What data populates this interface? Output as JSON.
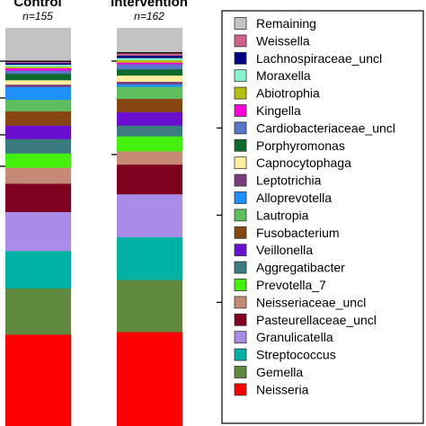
{
  "chart_data": {
    "type": "bar",
    "stacked": true,
    "normalized": true,
    "categories": [
      "Control",
      "Intervention"
    ],
    "category_subtitles": [
      "n=155",
      "n=162"
    ],
    "series": [
      {
        "name": "Neisseria",
        "color": "#fe0000",
        "values": [
          23.0,
          22.6
        ]
      },
      {
        "name": "Gemella",
        "color": "#5f8a3d",
        "values": [
          11.6,
          12.5
        ]
      },
      {
        "name": "Streptococcus",
        "color": "#00b2a3",
        "values": [
          9.4,
          10.3
        ]
      },
      {
        "name": "Granulicatella",
        "color": "#a98ce8",
        "values": [
          9.8,
          10.3
        ]
      },
      {
        "name": "Pasteurellaceae_uncl",
        "color": "#800020",
        "values": [
          7.1,
          7.1
        ]
      },
      {
        "name": "Neisseriaceae_uncl",
        "color": "#c58a75",
        "values": [
          4.0,
          3.2
        ]
      },
      {
        "name": "Prevotella_7",
        "color": "#44f00e",
        "values": [
          3.6,
          3.6
        ]
      },
      {
        "name": "Aggregatibacter",
        "color": "#3a7b80",
        "values": [
          3.6,
          2.6
        ]
      },
      {
        "name": "Veillonella",
        "color": "#6a0fd0",
        "values": [
          3.4,
          3.2
        ]
      },
      {
        "name": "Fusobacterium",
        "color": "#874512",
        "values": [
          3.6,
          3.2
        ]
      },
      {
        "name": "Lautropia",
        "color": "#5ebe5e",
        "values": [
          2.9,
          2.9
        ]
      },
      {
        "name": "Alloprevotella",
        "color": "#1e90ff",
        "values": [
          3.2,
          0.6
        ]
      },
      {
        "name": "Leptotrichia",
        "color": "#7a3a7e",
        "values": [
          0.6,
          0.6
        ]
      },
      {
        "name": "Capnocytophaga",
        "color": "#ffee9f",
        "values": [
          1.1,
          1.5
        ]
      },
      {
        "name": "Porphyromonas",
        "color": "#0c6b2c",
        "values": [
          1.6,
          1.5
        ]
      },
      {
        "name": "Cardiobacteriaceae_uncl",
        "color": "#5977c9",
        "values": [
          0.8,
          1.2
        ]
      },
      {
        "name": "Kingella",
        "color": "#ff00dd",
        "values": [
          0.6,
          0.4
        ]
      },
      {
        "name": "Abiotrophia",
        "color": "#b2c00f",
        "values": [
          0.4,
          0.6
        ]
      },
      {
        "name": "Moraxella",
        "color": "#88f4d0",
        "values": [
          0.5,
          0.5
        ]
      },
      {
        "name": "Lachnospiraceae_uncl",
        "color": "#000080",
        "values": [
          0.4,
          0.6
        ]
      },
      {
        "name": "Weissella",
        "color": "#d0608e",
        "values": [
          0.4,
          0.6
        ]
      },
      {
        "name": "Remaining",
        "color": "#c3c3c3",
        "values": [
          8.4,
          6.0
        ]
      }
    ],
    "legend_order": [
      "Remaining",
      "Weissella",
      "Lachnospiraceae_uncl",
      "Moraxella",
      "Abiotrophia",
      "Kingella",
      "Cardiobacteriaceae_uncl",
      "Porphyromonas",
      "Capnocytophaga",
      "Leptotrichia",
      "Alloprevotella",
      "Lautropia",
      "Fusobacterium",
      "Veillonella",
      "Aggregatibacter",
      "Prevotella_7",
      "Neisseriaceae_uncl",
      "Pasteurellaceae_uncl",
      "Granulicatella",
      "Streptococcus",
      "Gemella",
      "Neisseria"
    ],
    "legend_position": "right"
  }
}
